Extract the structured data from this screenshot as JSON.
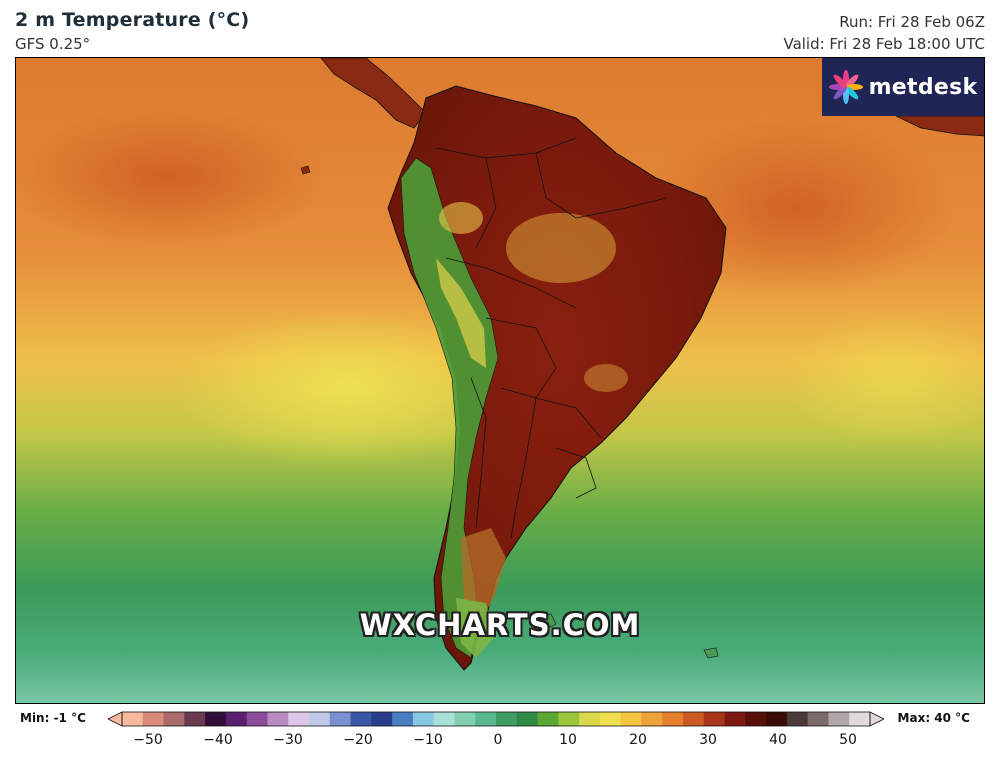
{
  "header": {
    "title": "2 m Temperature (°C)",
    "model": "GFS 0.25°",
    "run": "Run: Fri 28 Feb 06Z",
    "valid": "Valid: Fri 28 Feb 18:00 UTC"
  },
  "branding": {
    "logo_text": "metdesk",
    "watermark": "WXCHARTS.COM",
    "logo_bg": "#1f2555"
  },
  "legend": {
    "min_label": "Min: -1 °C",
    "max_label": "Max: 40 °C",
    "ticks": [
      "−50",
      "−40",
      "−30",
      "−20",
      "−10",
      "0",
      "10",
      "20",
      "30",
      "40",
      "50"
    ],
    "range": [
      -50,
      50
    ],
    "colors": [
      "#f7b8a0",
      "#d98b7a",
      "#a86a6a",
      "#6a3a4e",
      "#2f0f3a",
      "#5a1f6e",
      "#8c4a9a",
      "#b78ac0",
      "#dcc8e6",
      "#c0c8e8",
      "#7a90d0",
      "#3a56a8",
      "#2a3e8a",
      "#4a7ec0",
      "#86c8e0",
      "#a8e0d8",
      "#80cfb2",
      "#5ab88e",
      "#3e9c64",
      "#2e8a44",
      "#5aa834",
      "#9ac43a",
      "#d8d84a",
      "#f0e050",
      "#f4c444",
      "#eea23c",
      "#e4802e",
      "#cc5a22",
      "#a8341a",
      "#7e1a12",
      "#561008",
      "#3a0a06",
      "#4a3a3a",
      "#7a6a6a",
      "#b0a8a8",
      "#e0dada"
    ]
  }
}
